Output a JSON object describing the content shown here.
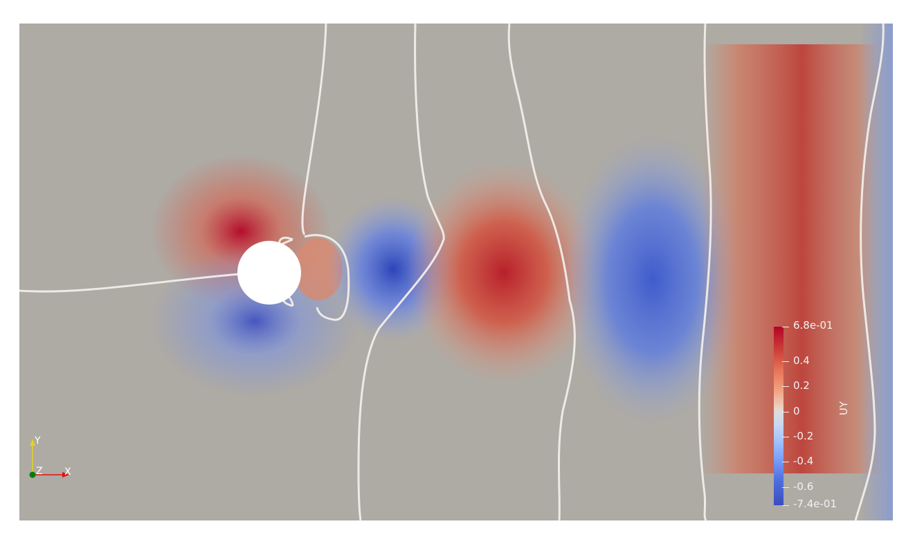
{
  "scene": {
    "background": "#ffffff",
    "field_background": "#aeaaa4",
    "colormap": [
      "#3b4cc0",
      "#7b9ff9",
      "#dddddd",
      "#f3a382",
      "#b40426"
    ]
  },
  "colorbar": {
    "title": "UY",
    "max_label": "6.8e-01",
    "min_label": "-7.4e-01",
    "ticks": [
      "0.4",
      "0.2",
      "0",
      "-0.2",
      "-0.4",
      "-0.6"
    ]
  },
  "orientation_axes": {
    "x_label": "X",
    "y_label": "Y",
    "z_label": "Z",
    "x_color": "#e01010",
    "y_color": "#e6d21e",
    "z_color": "#0a7a0a"
  }
}
